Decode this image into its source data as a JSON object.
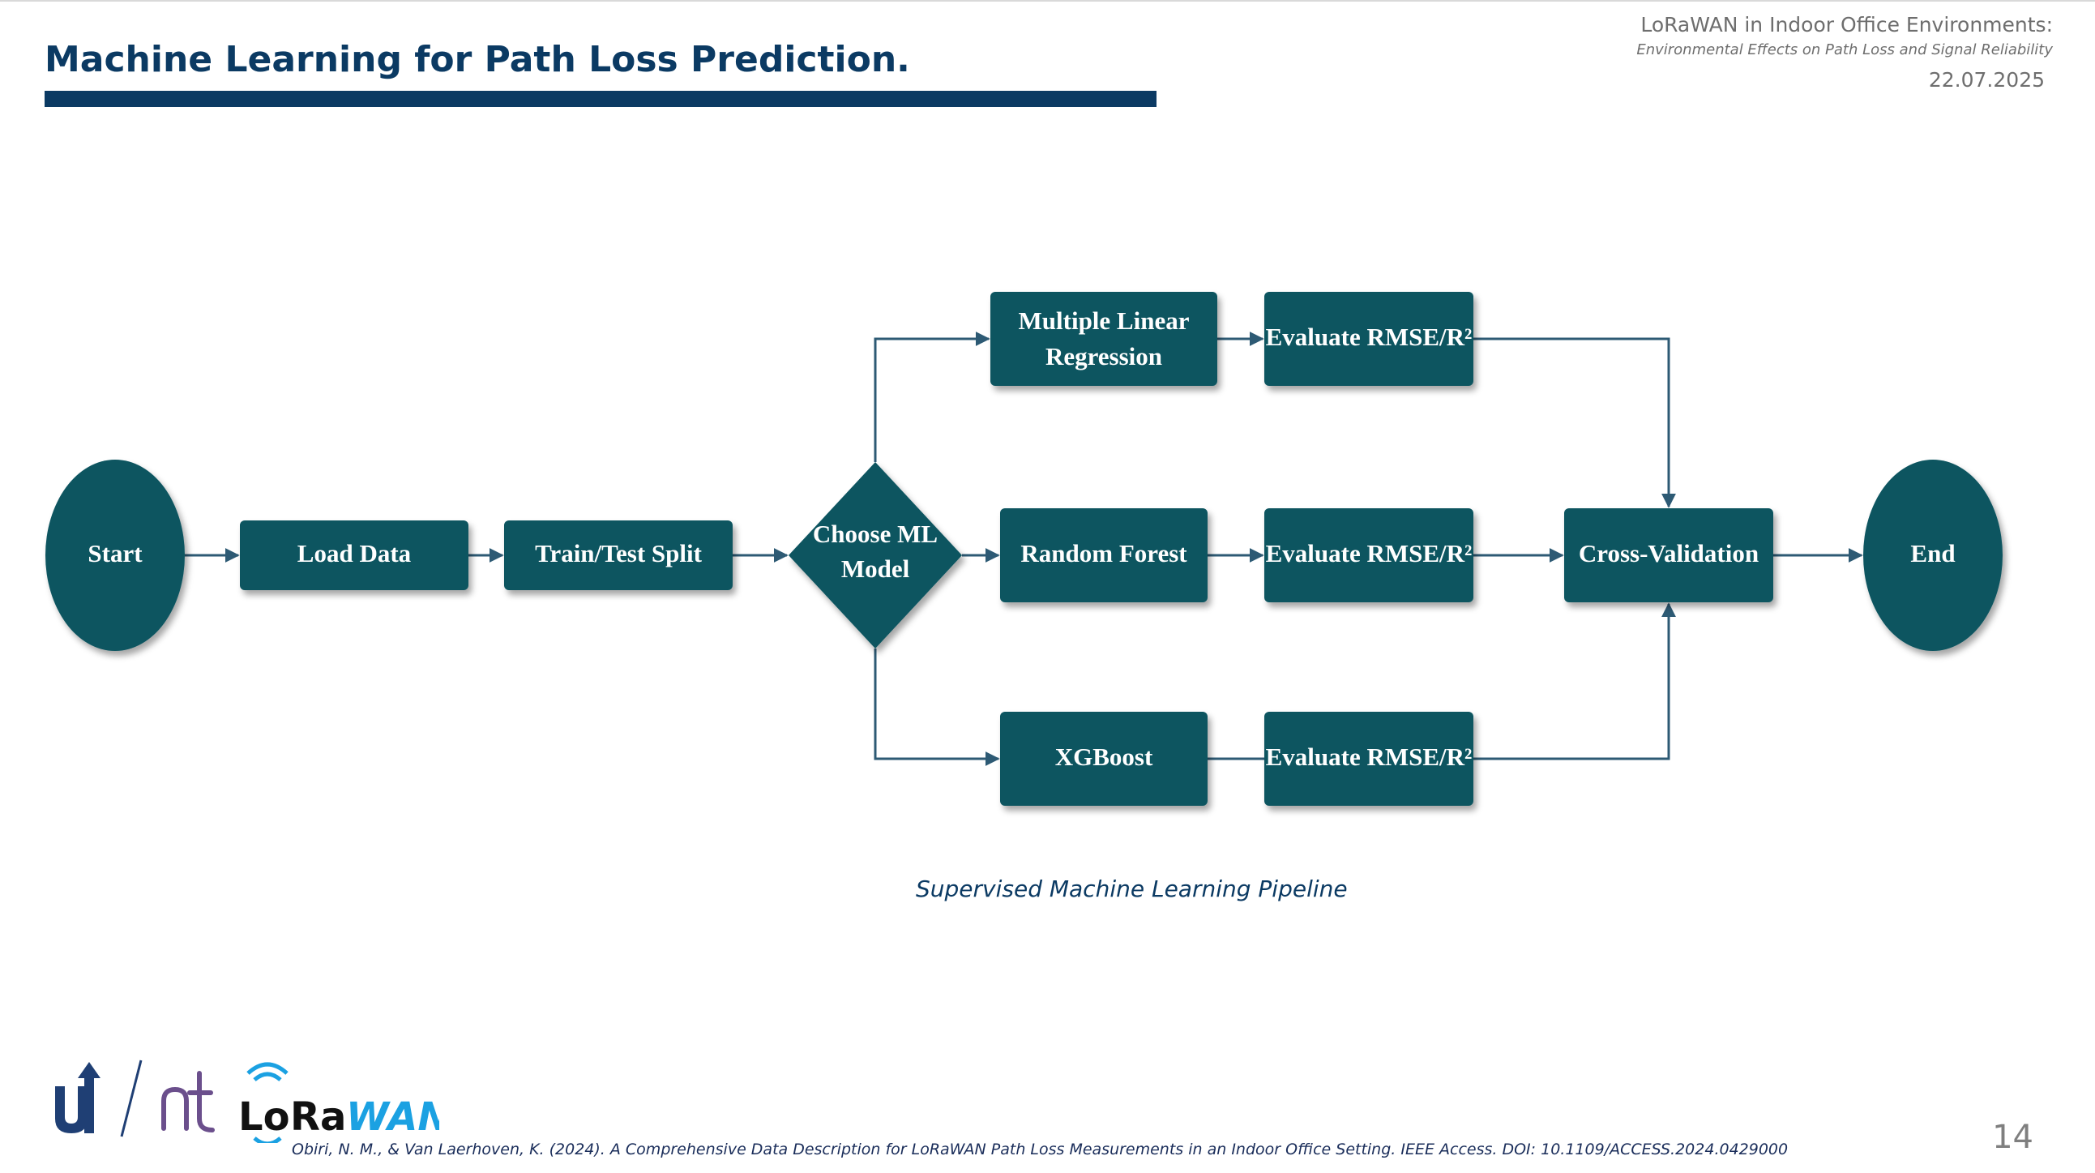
{
  "slide": {
    "title": "Machine Learning for Path Loss Prediction.",
    "header": {
      "title": "LoRaWAN in Indoor Office Environments:",
      "subtitle": "Environmental Effects on Path Loss and Signal Reliability",
      "date": "22.07.2025"
    },
    "caption": "Supervised Machine Learning Pipeline",
    "citation": "Obiri, N. M., & Van Laerhoven, K. (2024). A Comprehensive Data Description for LoRaWAN Path Loss Measurements in an Indoor Office Setting. IEEE Access. DOI: 10.1109/ACCESS.2024.0429000",
    "page_number": "14",
    "logos": {
      "university_logo": "ut",
      "group_logo": "nt",
      "lorawan_logo": "LoRaWAN"
    }
  },
  "diagram": {
    "colors": {
      "node_fill": "#0d5560",
      "connector": "#2d5a74",
      "title": "#0b3a63"
    },
    "nodes": {
      "start": "Start",
      "load_data": "Load Data",
      "train_test_split": "Train/Test Split",
      "choose_model": [
        "Choose ML",
        "Model"
      ],
      "mlr": [
        "Multiple Linear",
        "Regression"
      ],
      "random_forest": "Random Forest",
      "xgboost": "XGBoost",
      "eval_mlr": "Evaluate RMSE/R²",
      "eval_rf": "Evaluate RMSE/R²",
      "eval_xgb": "Evaluate RMSE/R²",
      "cross_validation": "Cross-Validation",
      "end": "End"
    },
    "edges": [
      [
        "start",
        "load_data"
      ],
      [
        "load_data",
        "train_test_split"
      ],
      [
        "train_test_split",
        "choose_model"
      ],
      [
        "choose_model",
        "mlr"
      ],
      [
        "choose_model",
        "random_forest"
      ],
      [
        "choose_model",
        "xgboost"
      ],
      [
        "mlr",
        "eval_mlr"
      ],
      [
        "random_forest",
        "eval_rf"
      ],
      [
        "xgboost",
        "eval_xgb"
      ],
      [
        "eval_mlr",
        "cross_validation"
      ],
      [
        "eval_rf",
        "cross_validation"
      ],
      [
        "eval_xgb",
        "cross_validation"
      ],
      [
        "cross_validation",
        "end"
      ]
    ]
  }
}
